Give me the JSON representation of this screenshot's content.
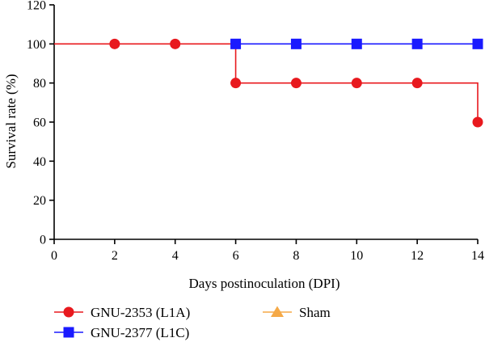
{
  "chart_data": {
    "type": "line",
    "step": true,
    "xlabel": "Days postinoculation (DPI)",
    "ylabel": "Survival rate (%)",
    "xlim": [
      0,
      14
    ],
    "ylim": [
      0,
      120
    ],
    "xticks": [
      0,
      2,
      4,
      6,
      8,
      10,
      12,
      14
    ],
    "yticks": [
      0,
      20,
      40,
      60,
      80,
      100,
      120
    ],
    "grid": false,
    "legend_position": "bottom",
    "series": [
      {
        "name": "GNU-2353 (L1A)",
        "color": "#e8191e",
        "marker": "circle",
        "x": [
          0,
          6,
          14
        ],
        "y": [
          100,
          80,
          60
        ],
        "marker_x": [
          2,
          4,
          6,
          8,
          10,
          12,
          14
        ],
        "marker_y": [
          100,
          100,
          80,
          80,
          80,
          80,
          60
        ]
      },
      {
        "name": "GNU-2377 (L1C)",
        "color": "#1a1aff",
        "marker": "square",
        "x": [
          6,
          14
        ],
        "y": [
          100,
          100
        ],
        "marker_x": [
          6,
          8,
          10,
          12,
          14
        ],
        "marker_y": [
          100,
          100,
          100,
          100,
          100
        ]
      },
      {
        "name": "Sham",
        "color": "#f5a947",
        "marker": "triangle",
        "x": [],
        "y": [],
        "marker_x": [],
        "marker_y": []
      }
    ]
  }
}
